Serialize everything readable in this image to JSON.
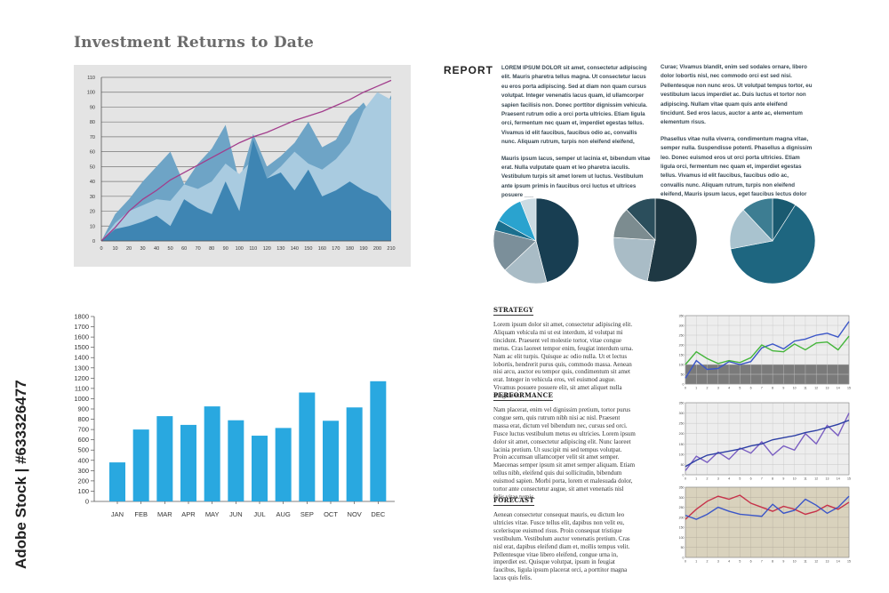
{
  "page": {
    "title": "Investment Returns to Date",
    "watermark": "Adobe Stock | #633326477"
  },
  "report": {
    "heading": "REPORT",
    "col1": [
      "LOREM IPSUM DOLOR sit amet, consectetur adipiscing elit. Mauris pharetra tellus magna. Ut consectetur lacus eu eros porta adipiscing. Sed at diam non quam cursus volutpat. Integer venenatis lacus quam, id ullamcorper sapien facilisis non. Donec porttitor dignissim vehicula. Praesent rutrum odio a orci porta ultricies. Etiam ligula orci, fermentum nec quam et, imperdiet egestas tellus. Vivamus id elit faucibus, faucibus odio ac, convallis nunc. Aliquam rutrum, turpis non eleifend eleifend,",
      "Mauris ipsum lacus, semper ut lacinia et, bibendum vitae erat. Nulla vulputate quam et leo pharetra iaculis. Vestibulum turpis sit amet lorem ut luctus. Vestibulum ante ipsum primis in faucibus orci luctus et ultrices posuere ___"
    ],
    "col2": [
      "Curae; Vivamus blandit, enim sed sodales ornare, libero dolor lobortis nisl, nec commodo orci est sed nisi. Pellentesque non nunc eros. Ut volutpat tempus tortor, eu vestibulum lacus imperdiet ac. Duis luctus et tortor non adipiscing. Nullam vitae quam quis ante eleifend tincidunt. Sed eros lacus, auctor a ante ac, elementum elementum risus.",
      "Phasellus vitae nulla viverra, condimentum magna vitae, semper nulla. Suspendisse potenti. Phasellus a dignissim leo. Donec euismod eros ut orci porta ultricies. Etiam ligula orci, fermentum nec quam et, imperdiet egestas tellus. Vivamus id elit faucibus, faucibus odio ac, convallis nunc. Aliquam rutrum, turpis non eleifend eleifend, Mauris ipsum lacus, eget faucibus lectus dolor vitae."
    ]
  },
  "sections": [
    {
      "heading": "STRATEGY",
      "text": "Lorem ipsum dolor sit amet, consectetur adipiscing elit. Aliquam vehicula mi ut est interdum, id volutpat mi tincidunt. Praesent vel molestie tortor, vitae congue metus. Cras laoreet tempor enim, feugiat interdum urna. Nam ac elit turpis. Quisque ac odio nulla. Ut et lectus lobortis, hendrerit purus quis, commodo massa. Aenean nisi arcu, auctor eu tempor quis, condimentum sit amet erat. Integer in vehicula eros, vel euismod augue. Vivamus posuere posuere elit, sit amet aliquet nulla fringilla et."
    },
    {
      "heading": "PERFORMANCE",
      "text": "Nam placerat, enim vel dignissim pretium, tortor purus congue sem, quis rutrum nibh nisi ac nisl. Praesent massa erat, dictum vel bibendum nec, cursus sed orci. Fusce luctus vestibulum metus eu ultricies. Lorem ipsum dolor sit amet, consectetur adipiscing elit. Nunc laoreet lacinia pretium. Ut suscipit mi sed tempus volutpat. Proin accumsan ullamcorper velit sit amet semper. Maecenas semper ipsum sit amet semper aliquam. Etiam tellus nibh, eleifend quis dui sollicitudin, bibendum euismod sapien. Morbi porta, lorem et malesuada dolor, tortor ante consectetur augue, sit amet venenatis nisl felis vitae turpis."
    },
    {
      "heading": "FORECAST",
      "text": "Aenean consectetur consequat mauris, eu dictum leo ultricies vitae. Fusce tellus elit, dapibus non velit eu, scelerisque euismod risus. Proin consequat tristique vestibulum. Vestibulum auctor venenatis pretium. Cras nisl erat, dapibus eleifend diam et, mollis tempus velit. Pellentesque vitae libero eleifend, congue urna in, imperdiet est. Quisque volutpat, ipsum in feugiat faucibus, ligula ipsum placerat orci, a porttitor magna lacus quis felis."
    }
  ],
  "chart_data": [
    {
      "id": "area",
      "type": "area",
      "title": "",
      "x": [
        0,
        10,
        20,
        30,
        40,
        50,
        60,
        70,
        80,
        90,
        100,
        110,
        120,
        130,
        140,
        150,
        160,
        170,
        180,
        190,
        200,
        210
      ],
      "ylim": [
        0,
        110
      ],
      "xlim": [
        0,
        210
      ],
      "yticks": [
        0,
        10,
        20,
        30,
        40,
        50,
        60,
        70,
        80,
        90,
        100,
        110
      ],
      "grid": true,
      "colors": {
        "bg": "#e4e4e4",
        "back": "#6ea4c6",
        "mid": "#a9cbe0",
        "front": "#3e85b3",
        "line": "#a23d8c"
      },
      "series": [
        {
          "values": [
            0,
            18,
            28,
            40,
            50,
            60,
            38,
            52,
            62,
            78,
            40,
            72,
            50,
            57,
            66,
            80,
            63,
            68,
            84,
            93,
            78,
            98
          ]
        },
        {
          "values": [
            0,
            12,
            20,
            24,
            28,
            27,
            38,
            35,
            40,
            52,
            45,
            55,
            42,
            50,
            60,
            52,
            48,
            55,
            66,
            88,
            100,
            95
          ]
        },
        {
          "values": [
            0,
            8,
            10,
            13,
            17,
            10,
            28,
            22,
            18,
            40,
            20,
            68,
            42,
            46,
            34,
            48,
            30,
            34,
            40,
            34,
            30,
            20
          ]
        },
        {
          "values": [
            0,
            9,
            20,
            28,
            34,
            41,
            46,
            51,
            56,
            61,
            66,
            70,
            73,
            77,
            81,
            84,
            87,
            91,
            95,
            100,
            104,
            108
          ]
        }
      ]
    },
    {
      "id": "bars",
      "type": "bar",
      "title": "",
      "categories": [
        "JAN",
        "FEB",
        "MAR",
        "APR",
        "MAY",
        "JUN",
        "JUL",
        "AUG",
        "SEP",
        "OCT",
        "NOV",
        "DEC"
      ],
      "values": [
        380,
        700,
        830,
        745,
        925,
        790,
        640,
        715,
        1060,
        785,
        915,
        1170
      ],
      "ylim": [
        0,
        1800
      ],
      "yticks": [
        0,
        100,
        200,
        300,
        400,
        500,
        600,
        700,
        800,
        900,
        1000,
        1100,
        1200,
        1300,
        1400,
        1500,
        1600,
        1700,
        1800
      ],
      "colors": {
        "bar": "#29a8e0"
      }
    },
    {
      "id": "pie1",
      "type": "pie",
      "values": [
        46,
        17,
        16,
        4,
        11,
        6
      ],
      "colors": [
        "#183e52",
        "#a9bcc6",
        "#7b8f9a",
        "#1b6f8e",
        "#2aa3cf",
        "#cbdbe3"
      ]
    },
    {
      "id": "pie2",
      "type": "pie",
      "values": [
        53,
        23,
        12,
        12
      ],
      "colors": [
        "#1e3843",
        "#a9bcc6",
        "#7c8c90",
        "#2b4e5c"
      ]
    },
    {
      "id": "pie3",
      "type": "pie",
      "values": [
        9,
        63,
        16,
        12
      ],
      "colors": [
        "#1a5a70",
        "#1e6680",
        "#a9c3cf",
        "#3d7d92"
      ]
    },
    {
      "id": "line1",
      "type": "line",
      "x": [
        0,
        1,
        2,
        3,
        4,
        5,
        6,
        7,
        8,
        9,
        10,
        11,
        12,
        13,
        14,
        15
      ],
      "ylim": [
        0,
        350
      ],
      "yticks": [
        0,
        50,
        100,
        150,
        200,
        250,
        300,
        350
      ],
      "colors": {
        "bg": "#ededed",
        "band": "#7a7a7a",
        "grid": "#c8c8c8"
      },
      "series": [
        {
          "color": "#3b56c8",
          "values": [
            30,
            120,
            75,
            80,
            115,
            100,
            115,
            185,
            205,
            180,
            220,
            230,
            250,
            260,
            240,
            320
          ]
        },
        {
          "color": "#44b53a",
          "values": [
            100,
            165,
            130,
            105,
            120,
            110,
            135,
            200,
            170,
            165,
            205,
            175,
            210,
            215,
            175,
            245
          ]
        }
      ]
    },
    {
      "id": "line2",
      "type": "line",
      "x": [
        0,
        1,
        2,
        3,
        4,
        5,
        6,
        7,
        8,
        9,
        10,
        11,
        12,
        13,
        14,
        15
      ],
      "ylim": [
        0,
        350
      ],
      "yticks": [
        0,
        50,
        100,
        150,
        200,
        250,
        300,
        350
      ],
      "colors": {
        "bg": "#ededed",
        "grid": "#c8c8c8"
      },
      "series": [
        {
          "color": "#7b5fc2",
          "values": [
            20,
            90,
            60,
            110,
            75,
            130,
            105,
            160,
            95,
            140,
            120,
            200,
            150,
            240,
            190,
            300
          ]
        },
        {
          "color": "#2d3fa5",
          "values": [
            40,
            70,
            95,
            105,
            115,
            125,
            140,
            150,
            170,
            180,
            190,
            205,
            215,
            230,
            245,
            265
          ]
        }
      ]
    },
    {
      "id": "line3",
      "type": "line",
      "x": [
        0,
        1,
        2,
        3,
        4,
        5,
        6,
        7,
        8,
        9,
        10,
        11,
        12,
        13,
        14,
        15
      ],
      "ylim": [
        0,
        350
      ],
      "yticks": [
        0,
        50,
        100,
        150,
        200,
        250,
        300,
        350
      ],
      "colors": {
        "bg": "#d9d2bd",
        "grid": "#b8b0a0"
      },
      "series": [
        {
          "color": "#c7324a",
          "values": [
            190,
            240,
            280,
            305,
            290,
            310,
            270,
            250,
            230,
            255,
            240,
            215,
            230,
            260,
            240,
            275
          ]
        },
        {
          "color": "#3b56c8",
          "values": [
            210,
            190,
            215,
            250,
            230,
            215,
            210,
            205,
            265,
            220,
            235,
            290,
            260,
            220,
            250,
            305
          ]
        }
      ]
    }
  ]
}
